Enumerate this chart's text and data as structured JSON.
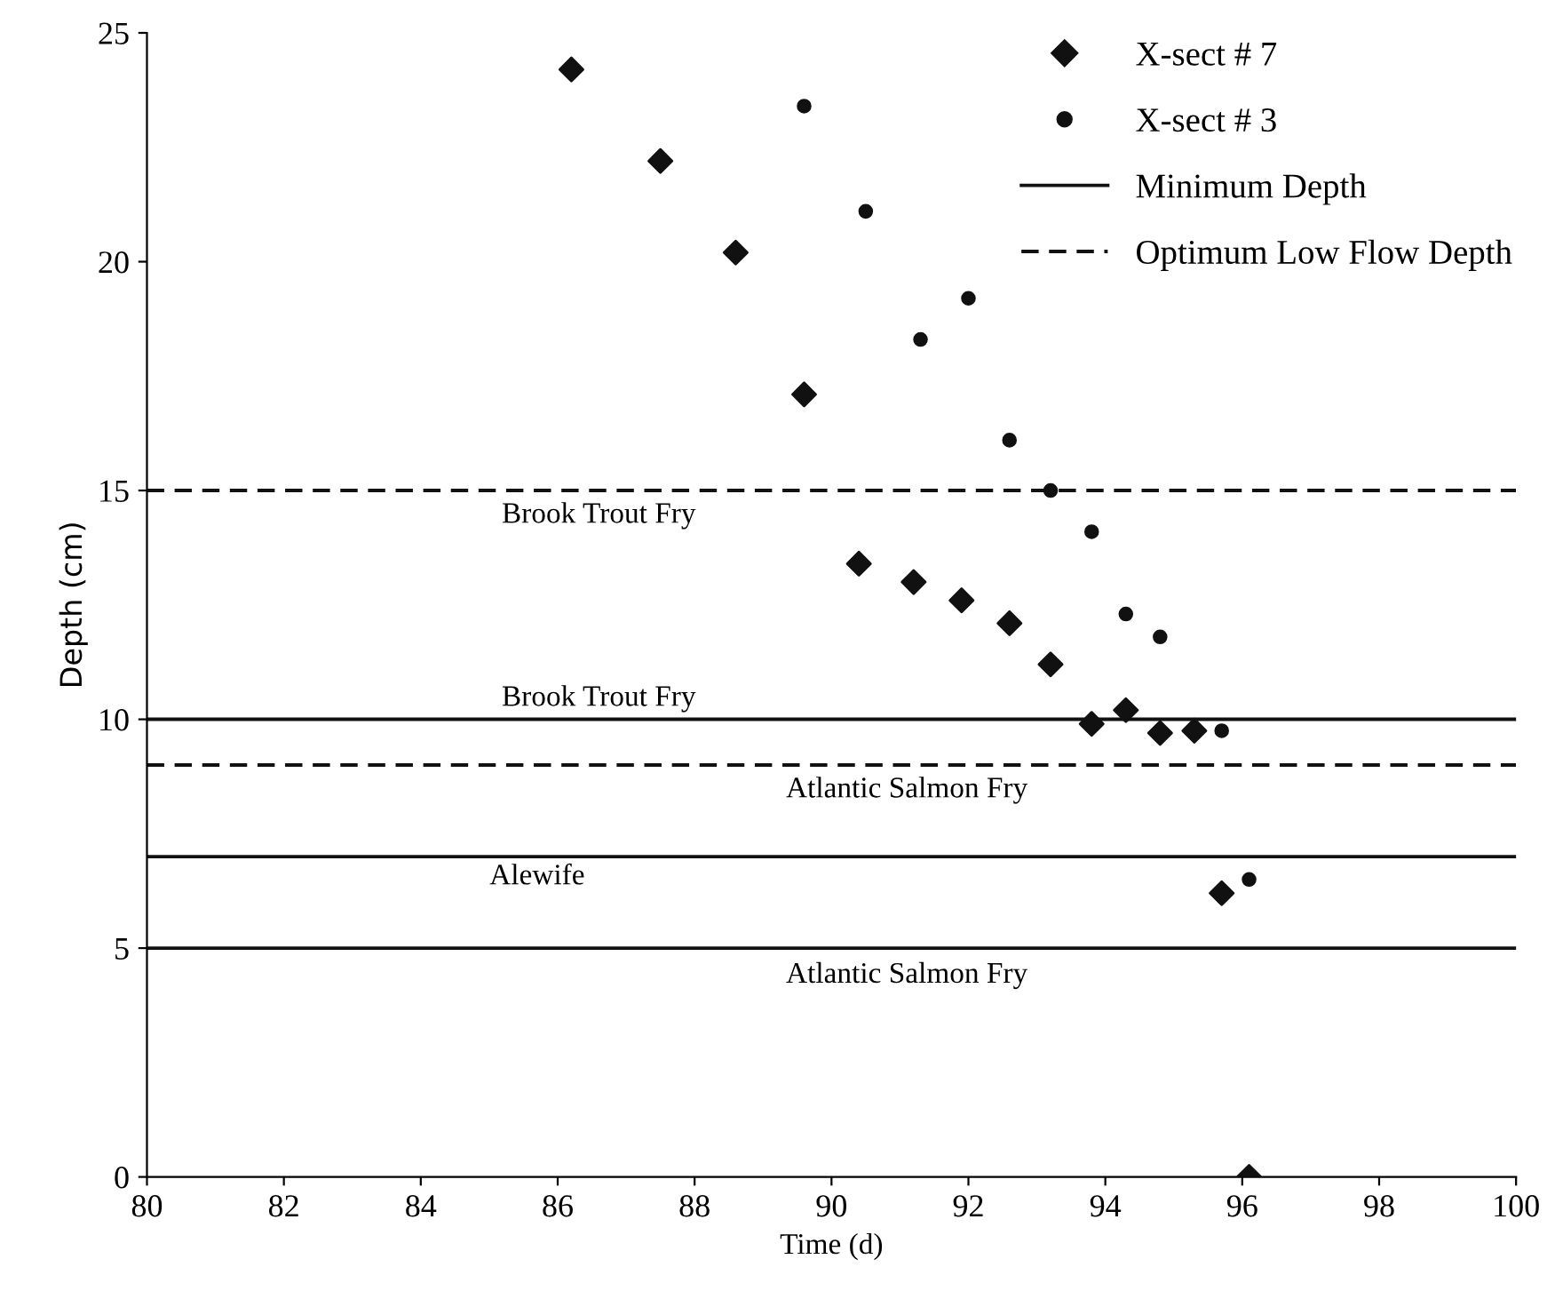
{
  "chart_data": {
    "type": "scatter",
    "xlabel": "Time (d)",
    "ylabel": "Depth (cm)",
    "xlim": [
      80,
      100
    ],
    "xticks": [
      80,
      82,
      84,
      86,
      88,
      90,
      92,
      94,
      96,
      98,
      100
    ],
    "ylim": [
      0,
      25
    ],
    "yticks": [
      0,
      5,
      10,
      15,
      20,
      25
    ],
    "legend": "top right",
    "series": [
      {
        "name": "X-sect # 7",
        "marker": "diamond",
        "color": "#111111",
        "x": [
          86.2,
          87.5,
          88.6,
          89.6,
          90.4,
          91.2,
          91.9,
          92.6,
          93.2,
          93.8,
          94.3,
          94.8,
          95.3,
          95.7,
          96.1
        ],
        "values": [
          24.2,
          22.2,
          20.2,
          17.1,
          13.4,
          13.0,
          12.6,
          12.1,
          11.2,
          9.9,
          10.2,
          9.7,
          9.75,
          6.2,
          0
        ]
      },
      {
        "name": "X-sect # 3",
        "marker": "circle",
        "color": "#111111",
        "x": [
          89.6,
          90.5,
          91.3,
          92.0,
          92.6,
          93.2,
          93.8,
          94.3,
          94.8,
          95.7,
          96.1
        ],
        "values": [
          23.4,
          21.1,
          18.3,
          19.2,
          16.1,
          15.0,
          14.1,
          12.3,
          11.8,
          9.75,
          6.5
        ]
      },
      {
        "name": "Minimum Depth",
        "type": "line",
        "line_style": "solid",
        "color": "#111111",
        "x": [
          80,
          100
        ],
        "values": [
          10,
          10
        ]
      },
      {
        "type": "line",
        "line_style": "solid",
        "color": "#111111",
        "x": [
          80,
          100
        ],
        "values": [
          7,
          7
        ]
      },
      {
        "type": "line",
        "line_style": "solid",
        "color": "#111111",
        "x": [
          80,
          100
        ],
        "values": [
          5,
          5
        ]
      },
      {
        "name": "Optimum Low Flow Depth",
        "type": "line",
        "line_style": "dashed",
        "color": "#111111",
        "x": [
          80,
          100
        ],
        "values": [
          15,
          15
        ]
      },
      {
        "type": "line",
        "line_style": "dashed",
        "color": "#111111",
        "x": [
          80,
          100
        ],
        "values": [
          9,
          9
        ]
      }
    ],
    "annotations": [
      "Brook Trout Fry",
      "Brook Trout Fry",
      "Atlantic Salmon Fry",
      "Alewife",
      "Atlantic Salmon Fry"
    ]
  }
}
